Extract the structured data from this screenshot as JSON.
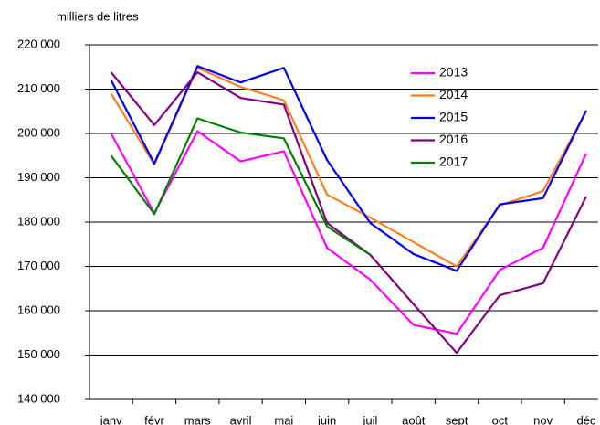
{
  "chart_data": {
    "type": "line",
    "y_label": "milliers de litres",
    "categories": [
      "janv",
      "févr",
      "mars",
      "avril",
      "mai",
      "juin",
      "juil",
      "août",
      "sept",
      "oct",
      "nov",
      "déc"
    ],
    "series": [
      {
        "name": "2013",
        "color": "#ff00ff",
        "values": [
          200000,
          182000,
          200500,
          193700,
          196000,
          174200,
          167000,
          156800,
          154800,
          169200,
          174200,
          195500
        ]
      },
      {
        "name": "2014",
        "color": "#ff7f1e",
        "values": [
          209000,
          193000,
          214800,
          210500,
          207500,
          186200,
          181000,
          175500,
          170000,
          183800,
          187000,
          205000
        ]
      },
      {
        "name": "2015",
        "color": "#0000ee",
        "values": [
          212000,
          193200,
          215200,
          211500,
          214800,
          194000,
          179800,
          172800,
          169000,
          184000,
          185400,
          205200
        ]
      },
      {
        "name": "2016",
        "color": "#800080",
        "values": [
          213800,
          201900,
          213800,
          208000,
          206500,
          179800,
          172600,
          161500,
          150500,
          163500,
          166200,
          185800
        ]
      },
      {
        "name": "2017",
        "color": "#008000",
        "values": [
          195000,
          181800,
          203400,
          200200,
          198900,
          179000,
          172600,
          null,
          null,
          null,
          null,
          null
        ]
      }
    ],
    "ylim": [
      140000,
      220000
    ],
    "yticks": [
      {
        "value": 140000,
        "label": "140 000"
      },
      {
        "value": 150000,
        "label": "150 000"
      },
      {
        "value": 160000,
        "label": "160 000"
      },
      {
        "value": 170000,
        "label": "170 000"
      },
      {
        "value": 180000,
        "label": "180 000"
      },
      {
        "value": 190000,
        "label": "190 000"
      },
      {
        "value": 200000,
        "label": "200 000"
      },
      {
        "value": 210000,
        "label": "210 000"
      },
      {
        "value": 220000,
        "label": "220 000"
      }
    ],
    "grid": true,
    "legend": "upper right"
  }
}
